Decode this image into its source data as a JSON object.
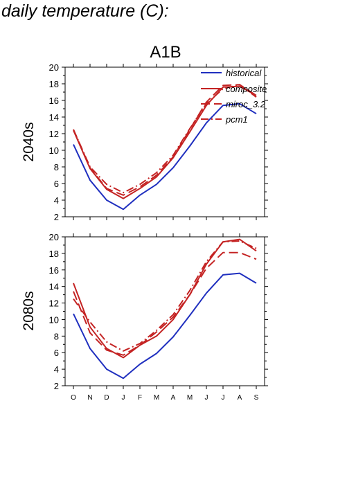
{
  "page": {
    "title": "daily temperature (C):"
  },
  "colors": {
    "historical": "#1f2fbf",
    "composite": "#c42323",
    "miroc": "#c42323",
    "pcm1": "#c42323",
    "axis": "#000000"
  },
  "chart_data": [
    {
      "type": "line",
      "panel_title": "A1B",
      "row_label": "2040s",
      "categories": [
        "O",
        "N",
        "D",
        "J",
        "F",
        "M",
        "A",
        "M",
        "J",
        "J",
        "A",
        "S"
      ],
      "ylim": [
        2,
        20
      ],
      "yticks": [
        2,
        4,
        6,
        8,
        10,
        12,
        14,
        16,
        18,
        20
      ],
      "grid": false,
      "legend_position": "top-right",
      "series": [
        {
          "name": "historical",
          "style": "solid",
          "color": "#1f2fbf",
          "values": [
            10.7,
            6.4,
            4.0,
            2.9,
            4.6,
            5.9,
            7.9,
            10.5,
            13.3,
            15.4,
            15.6,
            14.4
          ]
        },
        {
          "name": "composite",
          "style": "solid",
          "color": "#c42323",
          "values": [
            12.4,
            7.8,
            5.3,
            4.2,
            5.4,
            6.8,
            9.1,
            12.2,
            15.4,
            17.6,
            17.7,
            16.6
          ]
        },
        {
          "name": "miroc_3.2",
          "style": "longdash",
          "color": "#c42323",
          "values": [
            12.5,
            7.9,
            5.4,
            4.6,
            5.6,
            7.0,
            9.2,
            12.5,
            15.8,
            17.8,
            17.9,
            16.6
          ]
        },
        {
          "name": "pcm1",
          "style": "dashdot",
          "color": "#c42323",
          "values": [
            12.5,
            8.0,
            5.9,
            4.9,
            5.9,
            7.3,
            9.4,
            12.6,
            15.6,
            17.4,
            17.9,
            16.4
          ]
        }
      ]
    },
    {
      "type": "line",
      "panel_title": "",
      "row_label": "2080s",
      "categories": [
        "O",
        "N",
        "D",
        "J",
        "F",
        "M",
        "A",
        "M",
        "J",
        "J",
        "A",
        "S"
      ],
      "ylim": [
        2,
        20
      ],
      "yticks": [
        2,
        4,
        6,
        8,
        10,
        12,
        14,
        16,
        18,
        20
      ],
      "grid": false,
      "series": [
        {
          "name": "historical",
          "style": "solid",
          "color": "#1f2fbf",
          "values": [
            10.7,
            6.5,
            4.0,
            2.9,
            4.6,
            5.9,
            7.9,
            10.5,
            13.2,
            15.4,
            15.6,
            14.4
          ]
        },
        {
          "name": "composite",
          "style": "solid",
          "color": "#c42323",
          "values": [
            14.4,
            9.1,
            6.5,
            5.4,
            6.9,
            8.0,
            10.0,
            13.0,
            16.7,
            19.4,
            19.7,
            18.3
          ]
        },
        {
          "name": "miroc_3.2",
          "style": "longdash",
          "color": "#c42323",
          "values": [
            13.4,
            8.4,
            6.3,
            5.7,
            6.9,
            8.5,
            10.3,
            13.0,
            16.2,
            18.1,
            18.1,
            17.3
          ]
        },
        {
          "name": "pcm1",
          "style": "dashdot",
          "color": "#c42323",
          "values": [
            12.5,
            9.7,
            7.3,
            6.2,
            7.1,
            8.7,
            10.6,
            13.5,
            17.0,
            19.4,
            19.5,
            18.6
          ]
        }
      ]
    }
  ]
}
